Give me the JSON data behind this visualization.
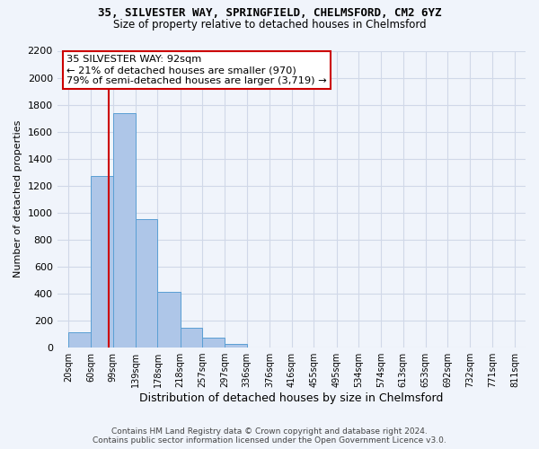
{
  "title1": "35, SILVESTER WAY, SPRINGFIELD, CHELMSFORD, CM2 6YZ",
  "title2": "Size of property relative to detached houses in Chelmsford",
  "xlabel": "Distribution of detached houses by size in Chelmsford",
  "ylabel": "Number of detached properties",
  "bar_left_edges": [
    20,
    60,
    99,
    139,
    178,
    218,
    257,
    297,
    336,
    376,
    416,
    455,
    495,
    534,
    574,
    613,
    653,
    692,
    732,
    771
  ],
  "bar_widths": [
    39,
    39,
    40,
    39,
    40,
    39,
    40,
    39,
    40,
    39,
    40,
    39,
    40,
    39,
    40,
    39,
    40,
    39,
    40,
    40
  ],
  "bar_heights": [
    115,
    1270,
    1740,
    950,
    415,
    150,
    75,
    30,
    0,
    0,
    0,
    0,
    0,
    0,
    0,
    0,
    0,
    0,
    0,
    0
  ],
  "bar_color": "#aec6e8",
  "bar_edgecolor": "#5a9fd4",
  "property_value": 92,
  "property_label": "35 SILVESTER WAY: 92sqm",
  "annotation_line1": "← 21% of detached houses are smaller (970)",
  "annotation_line2": "79% of semi-detached houses are larger (3,719) →",
  "annotation_box_color": "#ffffff",
  "annotation_box_edgecolor": "#cc0000",
  "vline_color": "#cc0000",
  "vline_x": 92,
  "ylim": [
    0,
    2200
  ],
  "yticks": [
    0,
    200,
    400,
    600,
    800,
    1000,
    1200,
    1400,
    1600,
    1800,
    2000,
    2200
  ],
  "xtick_labels": [
    "20sqm",
    "60sqm",
    "99sqm",
    "139sqm",
    "178sqm",
    "218sqm",
    "257sqm",
    "297sqm",
    "336sqm",
    "376sqm",
    "416sqm",
    "455sqm",
    "495sqm",
    "534sqm",
    "574sqm",
    "613sqm",
    "653sqm",
    "692sqm",
    "732sqm",
    "771sqm",
    "811sqm"
  ],
  "xtick_positions": [
    20,
    60,
    99,
    139,
    178,
    218,
    257,
    297,
    336,
    376,
    416,
    455,
    495,
    534,
    574,
    613,
    653,
    692,
    732,
    771,
    811
  ],
  "footer1": "Contains HM Land Registry data © Crown copyright and database right 2024.",
  "footer2": "Contains public sector information licensed under the Open Government Licence v3.0.",
  "grid_color": "#d0d8e8",
  "background_color": "#f0f4fb",
  "xlim_min": 0,
  "xlim_max": 830
}
